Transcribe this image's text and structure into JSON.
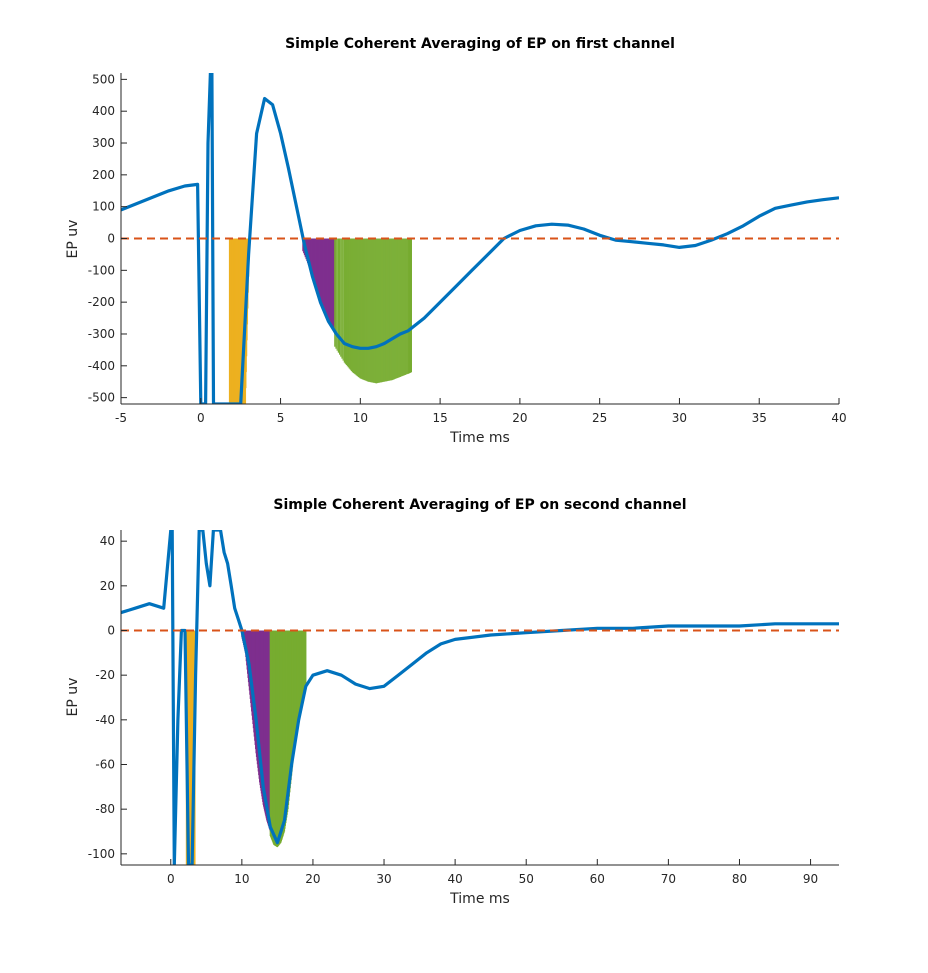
{
  "chart_data": [
    {
      "type": "line",
      "title": "Simple Coherent Averaging of EP on first channel",
      "xlabel": "Time ms",
      "ylabel": "EP uv",
      "xlim": [
        -5,
        40
      ],
      "ylim": [
        -520,
        520
      ],
      "xticks": [
        "-5",
        "0",
        "5",
        "10",
        "15",
        "20",
        "25",
        "30",
        "35",
        "40"
      ],
      "yticks": [
        "-500",
        "-400",
        "-300",
        "-200",
        "-100",
        "0",
        "100",
        "200",
        "300",
        "400",
        "500"
      ],
      "grid": false,
      "series": [
        {
          "color": "#0072bd",
          "x": [
            -5,
            -4,
            -3,
            -2,
            -1,
            -0.2,
            0.0,
            0.2,
            0.3,
            0.45,
            0.6,
            0.7,
            0.8,
            0.9,
            1.0,
            1.1,
            1.2,
            1.5,
            2.0,
            2.5,
            3.0,
            3.5,
            4.0,
            4.5,
            5.0,
            5.5,
            6.0,
            6.5,
            7.0,
            7.5,
            8.0,
            8.5,
            9.0,
            9.5,
            10.0,
            10.5,
            11.0,
            11.5,
            12.0,
            12.5,
            13.0,
            14.0,
            15.0,
            16.0,
            17.0,
            18.0,
            19.0,
            20.0,
            21.0,
            22.0,
            23.0,
            24.0,
            25.0,
            26.0,
            27.0,
            28.0,
            29.0,
            30.0,
            31.0,
            32.0,
            33.0,
            34.0,
            35.0,
            36.0,
            37.0,
            38.0,
            39.0,
            40.0
          ],
          "y": [
            90,
            110,
            130,
            150,
            165,
            170,
            -520,
            -520,
            -520,
            300,
            520,
            520,
            -520,
            -520,
            -520,
            -520,
            -520,
            -520,
            -520,
            -520,
            -50,
            330,
            440,
            420,
            330,
            220,
            100,
            -20,
            -120,
            -200,
            -260,
            -300,
            -330,
            -340,
            -345,
            -345,
            -340,
            -330,
            -315,
            -300,
            -290,
            -250,
            -200,
            -150,
            -100,
            -50,
            0,
            25,
            40,
            45,
            42,
            30,
            10,
            -5,
            -10,
            -15,
            -20,
            -28,
            -22,
            -5,
            15,
            40,
            70,
            95,
            105,
            115,
            122,
            128
          ]
        },
        {
          "color": "#d95319",
          "style": "dashed",
          "x": [
            -5,
            40
          ],
          "y": [
            0,
            0
          ]
        }
      ],
      "shaded_regions": [
        {
          "color": "#edb120",
          "x": [
            1.8,
            2.0,
            2.2,
            2.4,
            2.6,
            2.8,
            3.0
          ],
          "y_top": [
            0,
            0,
            0,
            0,
            0,
            0,
            0
          ],
          "y_bottom": [
            -520,
            -520,
            -520,
            -520,
            -520,
            -520,
            -120
          ]
        },
        {
          "color": "#7e2f8e",
          "x": [
            6.4,
            6.8,
            7.2,
            7.6,
            8.0,
            8.4
          ],
          "y_bottom": [
            -40,
            -90,
            -150,
            -210,
            -260,
            -300
          ]
        },
        {
          "color": "#77ac30",
          "x": [
            8.4,
            9.0,
            9.5,
            10.0,
            10.5,
            11.0,
            11.5,
            12.0,
            12.5,
            13.0,
            13.2
          ],
          "y_bottom": [
            -340,
            -390,
            -420,
            -440,
            -450,
            -455,
            -450,
            -445,
            -435,
            -425,
            -420
          ]
        }
      ]
    },
    {
      "type": "line",
      "title": "Simple Coherent Averaging of EP on second channel",
      "xlabel": "Time ms",
      "ylabel": "EP uv",
      "xlim": [
        -7,
        94
      ],
      "ylim": [
        -105,
        45
      ],
      "xticks": [
        "0",
        "10",
        "20",
        "30",
        "40",
        "50",
        "60",
        "70",
        "80",
        "90"
      ],
      "yticks": [
        "-100",
        "-80",
        "-60",
        "-40",
        "-20",
        "0",
        "20",
        "40"
      ],
      "grid": false,
      "series": [
        {
          "color": "#0072bd",
          "x": [
            -7,
            -5,
            -3,
            -1,
            0.0,
            0.2,
            0.5,
            1.0,
            1.5,
            2.0,
            2.5,
            3.0,
            3.5,
            4.0,
            4.5,
            5.0,
            5.5,
            6.0,
            6.5,
            7.0,
            7.5,
            8.0,
            8.5,
            9.0,
            9.5,
            10.0,
            11.0,
            12.0,
            13.0,
            14.0,
            15.0,
            16.0,
            17.0,
            18.0,
            19.0,
            20.0,
            22.0,
            24.0,
            26.0,
            28.0,
            30.0,
            32.0,
            34.0,
            36.0,
            38.0,
            40.0,
            45.0,
            50.0,
            55.0,
            60.0,
            65.0,
            70.0,
            75.0,
            80.0,
            85.0,
            90.0,
            94.0
          ],
          "y": [
            8,
            10,
            12,
            10,
            45,
            45,
            -105,
            -40,
            0,
            0,
            -105,
            -105,
            -20,
            45,
            45,
            30,
            20,
            45,
            45,
            45,
            35,
            30,
            20,
            10,
            5,
            0,
            -15,
            -40,
            -70,
            -88,
            -95,
            -85,
            -60,
            -40,
            -25,
            -20,
            -18,
            -20,
            -24,
            -26,
            -25,
            -20,
            -15,
            -10,
            -6,
            -4,
            -2,
            -1,
            0,
            1,
            1,
            2,
            2,
            2,
            3,
            3,
            3
          ]
        },
        {
          "color": "#d95319",
          "style": "dashed",
          "x": [
            -7,
            94
          ],
          "y": [
            0,
            0
          ]
        }
      ],
      "shaded_regions": [
        {
          "color": "#edb120",
          "x": [
            2.2,
            2.5,
            2.8,
            3.1,
            3.4
          ],
          "y_bottom": [
            -105,
            -105,
            -105,
            -105,
            -105
          ]
        },
        {
          "color": "#7e2f8e",
          "x": [
            10.0,
            10.5,
            11.0,
            11.5,
            12.0,
            12.5,
            13.0,
            13.5,
            14.0
          ],
          "y_bottom": [
            -3,
            -10,
            -25,
            -40,
            -55,
            -68,
            -78,
            -85,
            -90
          ]
        },
        {
          "color": "#77ac30",
          "x": [
            14.0,
            14.5,
            15.0,
            15.5,
            16.0,
            16.5,
            17.0,
            17.5,
            18.0,
            18.5,
            19.0
          ],
          "y_bottom": [
            -92,
            -96,
            -97,
            -95,
            -90,
            -80,
            -65,
            -50,
            -38,
            -30,
            -25
          ]
        }
      ]
    }
  ]
}
